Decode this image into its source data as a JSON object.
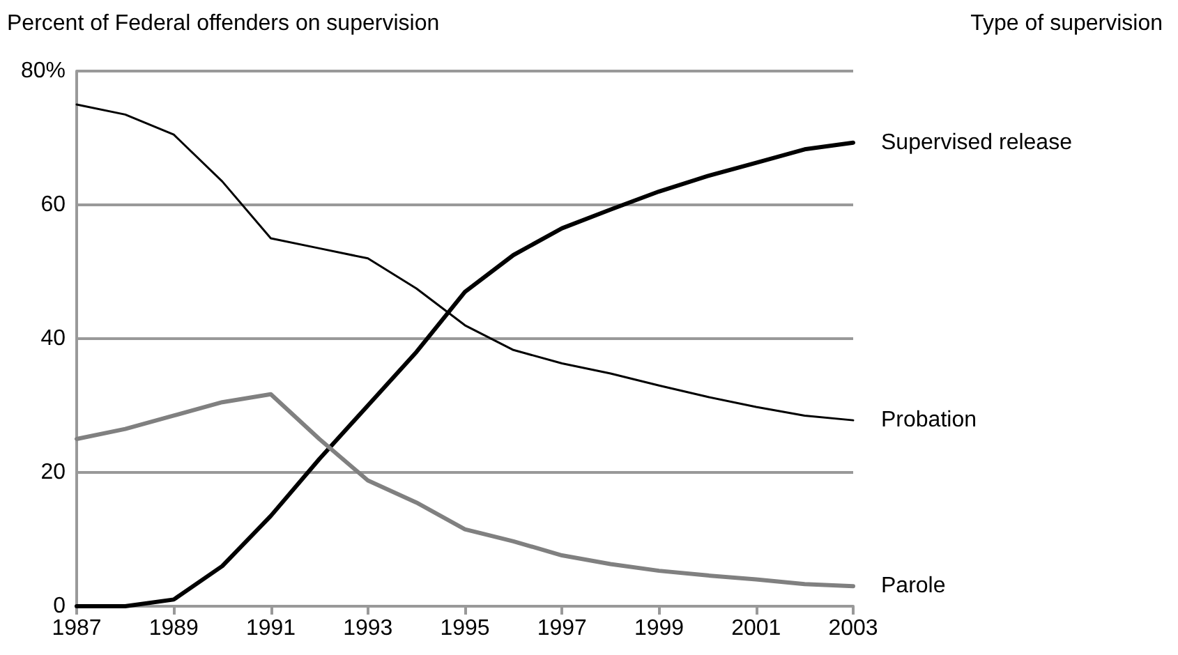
{
  "chart_data": {
    "type": "line",
    "ylabel": "Percent of Federal offenders on supervision",
    "legend_title": "Type of supervision",
    "x": [
      1987,
      1988,
      1989,
      1990,
      1991,
      1992,
      1993,
      1994,
      1995,
      1996,
      1997,
      1998,
      1999,
      2000,
      2001,
      2002,
      2003
    ],
    "series": [
      {
        "name": "Supervised release",
        "color": "#000000",
        "values": [
          0,
          0,
          1,
          6,
          13.5,
          22,
          30,
          38,
          47,
          52.5,
          56.5,
          59.3,
          62,
          64.3,
          66.3,
          68.3,
          69.3
        ]
      },
      {
        "name": "Probation",
        "color": "#000000",
        "values": [
          75,
          73.5,
          70.5,
          63.5,
          55,
          53.5,
          52,
          47.5,
          42,
          38.3,
          36.3,
          34.8,
          33,
          31.3,
          29.8,
          28.5,
          27.8
        ]
      },
      {
        "name": "Parole",
        "color": "#808080",
        "values": [
          25,
          26.5,
          28.5,
          30.5,
          31.7,
          25,
          18.8,
          15.5,
          11.5,
          9.7,
          7.6,
          6.3,
          5.3,
          4.6,
          4,
          3.3,
          3
        ]
      }
    ],
    "xlim": [
      1987,
      2003
    ],
    "xticks": [
      1987,
      1989,
      1991,
      1993,
      1995,
      1997,
      1999,
      2001,
      2003
    ],
    "ylim": [
      0,
      80
    ],
    "yticks": [
      0,
      20,
      40,
      60,
      {
        "value": 80,
        "label": "80%"
      }
    ],
    "grid": "y",
    "legend": false,
    "marker": "none",
    "line_style": "solid"
  }
}
